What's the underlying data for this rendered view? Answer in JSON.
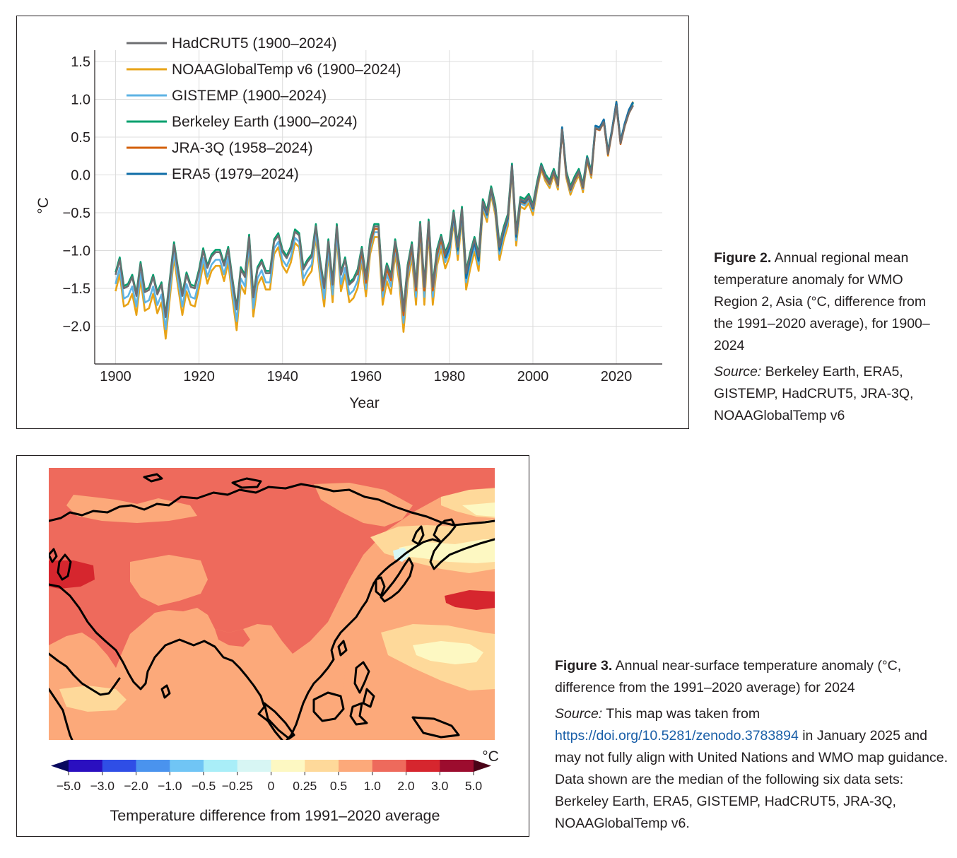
{
  "figure2": {
    "caption_label": "Figure 2.",
    "caption_text": "Annual regional mean temperature anomaly for WMO Region 2, Asia (°C, difference from the 1991–2020 average), for 1900–2024",
    "source_label": "Source:",
    "source_text": "Berkeley Earth, ERA5, GISTEMP, HadCRUT5, JRA-3Q, NOAAGlobalTemp v6"
  },
  "figure3": {
    "caption_label": "Figure 3.",
    "caption_text": "Annual near-surface temperature anomaly (°C, difference from the 1991–2020 average) for 2024",
    "source_label": "Source:",
    "source_pre": "This map was taken from",
    "source_link": "https://doi.org/10.5281/zenodo.3783894",
    "source_post": "in January 2025 and may not fully align with United Nations and WMO map guidance. Data shown are the median of the following six data sets: Berkeley Earth, ERA5, GISTEMP, HadCRUT5, JRA-3Q, NOAAGlobalTemp v6.",
    "colorbar": {
      "unit": "°C",
      "title": "Temperature difference from 1991–2020 average",
      "tick_labels": [
        "−5.0",
        "−3.0",
        "−2.0",
        "−1.0",
        "−0.5",
        "−0.25",
        "0",
        "0.25",
        "0.5",
        "1.0",
        "2.0",
        "3.0",
        "5.0"
      ],
      "colors": [
        "#2a0fc0",
        "#2f4ee6",
        "#4a93ee",
        "#70c5f5",
        "#a9eef8",
        "#d7f6f4",
        "#fdf8c2",
        "#fed99a",
        "#fca97a",
        "#ee6a5c",
        "#d6262e",
        "#9c0c2e"
      ],
      "end_low": "#08085e",
      "end_high": "#4a0318"
    },
    "map_colors": {
      "orange": "#fca97a",
      "red": "#ee6a5c",
      "dark_red": "#d6262e",
      "light_orange": "#fed99a",
      "yellow": "#fdf8c2",
      "pale_blue": "#d7f6f4"
    }
  },
  "chart_data": {
    "type": "line",
    "title": "",
    "xlabel": "Year",
    "ylabel": "°C",
    "xlim": [
      1895,
      2031
    ],
    "ylim": [
      -2.5,
      1.65
    ],
    "x_ticks": [
      1900,
      1920,
      1940,
      1960,
      1980,
      2000,
      2020
    ],
    "y_ticks": [
      1.5,
      1.0,
      0.5,
      0.0,
      -0.5,
      -1.0,
      -1.5,
      -2.0
    ],
    "y_tick_labels": [
      "1.5",
      "1.0",
      "0.5",
      "0.0",
      "−0.5",
      "−1.0",
      "−1.5",
      "−2.0"
    ],
    "grid": true,
    "legend_position": "top-left",
    "base_series": [
      [
        1900,
        -1.32
      ],
      [
        1901,
        -1.12
      ],
      [
        1902,
        -1.5
      ],
      [
        1903,
        -1.47
      ],
      [
        1904,
        -1.35
      ],
      [
        1905,
        -1.6
      ],
      [
        1906,
        -1.18
      ],
      [
        1907,
        -1.55
      ],
      [
        1908,
        -1.52
      ],
      [
        1909,
        -1.35
      ],
      [
        1910,
        -1.58
      ],
      [
        1911,
        -1.45
      ],
      [
        1912,
        -1.88
      ],
      [
        1913,
        -1.4
      ],
      [
        1914,
        -0.92
      ],
      [
        1915,
        -1.28
      ],
      [
        1916,
        -1.6
      ],
      [
        1917,
        -1.32
      ],
      [
        1918,
        -1.48
      ],
      [
        1919,
        -1.5
      ],
      [
        1920,
        -1.28
      ],
      [
        1921,
        -1.0
      ],
      [
        1922,
        -1.23
      ],
      [
        1923,
        -1.08
      ],
      [
        1924,
        -1.02
      ],
      [
        1925,
        -1.02
      ],
      [
        1926,
        -1.2
      ],
      [
        1927,
        -0.98
      ],
      [
        1928,
        -1.4
      ],
      [
        1929,
        -1.78
      ],
      [
        1930,
        -1.25
      ],
      [
        1931,
        -1.35
      ],
      [
        1932,
        -0.82
      ],
      [
        1933,
        -1.62
      ],
      [
        1934,
        -1.25
      ],
      [
        1935,
        -1.15
      ],
      [
        1936,
        -1.3
      ],
      [
        1937,
        -1.3
      ],
      [
        1938,
        -0.88
      ],
      [
        1939,
        -0.8
      ],
      [
        1940,
        -1.02
      ],
      [
        1941,
        -1.1
      ],
      [
        1942,
        -0.98
      ],
      [
        1943,
        -0.75
      ],
      [
        1944,
        -0.8
      ],
      [
        1945,
        -1.25
      ],
      [
        1946,
        -1.15
      ],
      [
        1947,
        -1.08
      ],
      [
        1948,
        -0.68
      ],
      [
        1949,
        -1.15
      ],
      [
        1950,
        -1.5
      ],
      [
        1951,
        -0.88
      ],
      [
        1952,
        -1.45
      ],
      [
        1953,
        -0.68
      ],
      [
        1954,
        -1.32
      ],
      [
        1955,
        -1.12
      ],
      [
        1956,
        -1.45
      ],
      [
        1957,
        -1.4
      ],
      [
        1958,
        -1.28
      ],
      [
        1959,
        -0.98
      ],
      [
        1960,
        -1.38
      ],
      [
        1961,
        -0.88
      ],
      [
        1962,
        -0.68
      ],
      [
        1963,
        -0.68
      ],
      [
        1964,
        -1.48
      ],
      [
        1965,
        -1.2
      ],
      [
        1966,
        -1.35
      ],
      [
        1967,
        -0.88
      ],
      [
        1968,
        -1.22
      ],
      [
        1969,
        -1.8
      ],
      [
        1970,
        -1.22
      ],
      [
        1971,
        -0.92
      ],
      [
        1972,
        -1.48
      ],
      [
        1973,
        -0.65
      ],
      [
        1974,
        -1.48
      ],
      [
        1975,
        -0.62
      ],
      [
        1976,
        -1.48
      ],
      [
        1977,
        -1.02
      ],
      [
        1978,
        -0.82
      ],
      [
        1979,
        -1.05
      ],
      [
        1980,
        -0.92
      ],
      [
        1981,
        -0.5
      ],
      [
        1982,
        -0.95
      ],
      [
        1983,
        -0.45
      ],
      [
        1984,
        -1.3
      ],
      [
        1985,
        -1.05
      ],
      [
        1986,
        -0.85
      ],
      [
        1987,
        -1.08
      ],
      [
        1988,
        -0.35
      ],
      [
        1989,
        -0.5
      ],
      [
        1990,
        -0.18
      ],
      [
        1991,
        -0.42
      ],
      [
        1992,
        -0.95
      ],
      [
        1993,
        -0.72
      ],
      [
        1994,
        -0.55
      ],
      [
        1995,
        0.12
      ],
      [
        1996,
        -0.78
      ],
      [
        1997,
        -0.32
      ],
      [
        1998,
        -0.35
      ],
      [
        1999,
        -0.28
      ],
      [
        2000,
        -0.42
      ],
      [
        2001,
        -0.12
      ],
      [
        2002,
        0.12
      ],
      [
        2003,
        -0.02
      ],
      [
        2004,
        -0.1
      ],
      [
        2005,
        0.05
      ],
      [
        2006,
        -0.12
      ],
      [
        2007,
        0.6
      ],
      [
        2008,
        0.02
      ],
      [
        2009,
        -0.18
      ],
      [
        2010,
        -0.05
      ],
      [
        2011,
        0.05
      ],
      [
        2012,
        -0.15
      ],
      [
        2013,
        0.22
      ],
      [
        2014,
        0.02
      ],
      [
        2015,
        0.62
      ],
      [
        2016,
        0.6
      ],
      [
        2017,
        0.7
      ],
      [
        2018,
        0.28
      ],
      [
        2019,
        0.58
      ],
      [
        2020,
        0.92
      ],
      [
        2021,
        0.42
      ],
      [
        2022,
        0.65
      ],
      [
        2023,
        0.82
      ],
      [
        2024,
        0.92
      ]
    ],
    "series": [
      {
        "name": "HadCRUT5 (1900–2024)",
        "color": "#6d6e71",
        "start": 1900,
        "offset": 0.0,
        "amp": 1.0,
        "legend_order": 0,
        "draw_order": 5
      },
      {
        "name": "NOAAGlobalTemp v6 (1900–2024)",
        "color": "#e8a317",
        "start": 1900,
        "offset": -0.06,
        "amp": 1.12,
        "legend_order": 1,
        "draw_order": 0
      },
      {
        "name": "GISTEMP (1900–2024)",
        "color": "#5eb3e4",
        "start": 1900,
        "offset": -0.03,
        "amp": 1.07,
        "legend_order": 2,
        "draw_order": 1
      },
      {
        "name": "Berkeley Earth (1900–2024)",
        "color": "#00a06e",
        "start": 1900,
        "offset": 0.03,
        "amp": 1.0,
        "legend_order": 3,
        "draw_order": 2
      },
      {
        "name": "JRA-3Q (1958–2024)",
        "color": "#d35f0b",
        "start": 1958,
        "offset": -0.02,
        "amp": 1.02,
        "legend_order": 4,
        "draw_order": 3
      },
      {
        "name": "ERA5 (1979–2024)",
        "color": "#1170aa",
        "start": 1979,
        "offset": 0.0,
        "amp": 1.05,
        "legend_order": 5,
        "draw_order": 4
      }
    ]
  }
}
